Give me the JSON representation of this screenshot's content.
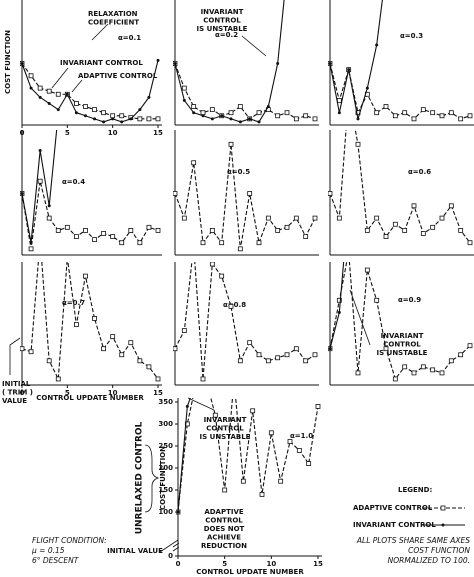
{
  "chart_data": [
    {
      "type": "line",
      "annotation": "α=0.1",
      "x": [
        0,
        1,
        2,
        3,
        4,
        5,
        6,
        7,
        8,
        9,
        10,
        11,
        12,
        13,
        14,
        15
      ],
      "xlim": [
        0,
        15
      ],
      "xticks": [
        0,
        5,
        10,
        15
      ],
      "ylim": [
        0,
        200
      ],
      "series": [
        {
          "color": "#111",
          "dashed": true,
          "values": [
            100,
            80,
            60,
            55,
            50,
            50,
            35,
            30,
            25,
            20,
            15,
            15,
            12,
            10,
            10,
            10
          ]
        },
        {
          "color": "#111",
          "dashed": false,
          "values": [
            100,
            60,
            45,
            35,
            25,
            50,
            20,
            15,
            10,
            5,
            10,
            5,
            10,
            25,
            45,
            105
          ]
        }
      ]
    },
    {
      "type": "line",
      "annotation": "α=0.2",
      "x": [
        0,
        1,
        2,
        3,
        4,
        5,
        6,
        7,
        8,
        9,
        10,
        11,
        12,
        13,
        14,
        15
      ],
      "xlim": [
        0,
        15
      ],
      "ylim": [
        0,
        200
      ],
      "series": [
        {
          "color": "#111",
          "dashed": true,
          "values": [
            100,
            60,
            30,
            20,
            25,
            15,
            20,
            30,
            10,
            20,
            25,
            15,
            20,
            10,
            15,
            10
          ]
        },
        {
          "color": "#111",
          "dashed": false,
          "values": [
            100,
            40,
            20,
            15,
            10,
            15,
            10,
            5,
            10,
            5,
            30,
            100,
            250,
            null,
            null,
            null
          ]
        }
      ]
    },
    {
      "type": "line",
      "annotation": "α=0.3",
      "x": [
        0,
        1,
        2,
        3,
        4,
        5,
        6,
        7,
        8,
        9,
        10,
        11,
        12,
        13,
        14,
        15
      ],
      "xlim": [
        0,
        15
      ],
      "ylim": [
        0,
        200
      ],
      "series": [
        {
          "color": "#111",
          "dashed": true,
          "values": [
            100,
            40,
            90,
            20,
            50,
            20,
            30,
            15,
            20,
            10,
            25,
            20,
            15,
            20,
            10,
            15
          ]
        },
        {
          "color": "#111",
          "dashed": false,
          "values": [
            100,
            20,
            90,
            10,
            60,
            130,
            250,
            null,
            null,
            null,
            null,
            null,
            null,
            null,
            null,
            null
          ]
        }
      ]
    },
    {
      "type": "line",
      "annotation": "α=0.4",
      "x": [
        0,
        1,
        2,
        3,
        4,
        5,
        6,
        7,
        8,
        9,
        10,
        11,
        12,
        13,
        14,
        15
      ],
      "xlim": [
        0,
        15
      ],
      "ylim": [
        0,
        200
      ],
      "series": [
        {
          "color": "#111",
          "dashed": true,
          "values": [
            100,
            10,
            120,
            60,
            40,
            45,
            30,
            40,
            25,
            35,
            30,
            20,
            40,
            20,
            45,
            40
          ]
        },
        {
          "color": "#111",
          "dashed": false,
          "values": [
            100,
            20,
            170,
            80,
            230,
            null,
            null,
            null,
            null,
            null,
            null,
            null,
            null,
            null,
            null,
            null
          ]
        }
      ]
    },
    {
      "type": "line",
      "annotation": "α=0.5",
      "x": [
        0,
        1,
        2,
        3,
        4,
        5,
        6,
        7,
        8,
        9,
        10,
        11,
        12,
        13,
        14,
        15
      ],
      "xlim": [
        0,
        15
      ],
      "ylim": [
        0,
        200
      ],
      "series": [
        {
          "color": "#111",
          "dashed": true,
          "values": [
            100,
            60,
            150,
            20,
            40,
            20,
            180,
            10,
            100,
            20,
            60,
            40,
            45,
            60,
            30,
            60
          ]
        }
      ]
    },
    {
      "type": "line",
      "annotation": "α=0.6",
      "x": [
        0,
        1,
        2,
        3,
        4,
        5,
        6,
        7,
        8,
        9,
        10,
        11,
        12,
        13,
        14,
        15
      ],
      "xlim": [
        0,
        15
      ],
      "ylim": [
        0,
        200
      ],
      "series": [
        {
          "color": "#111",
          "dashed": true,
          "values": [
            100,
            60,
            260,
            180,
            40,
            60,
            30,
            50,
            40,
            80,
            35,
            45,
            60,
            80,
            40,
            20
          ]
        }
      ]
    },
    {
      "type": "line",
      "annotation": "α=0.7",
      "x": [
        0,
        1,
        2,
        3,
        4,
        5,
        6,
        7,
        8,
        9,
        10,
        11,
        12,
        13,
        14,
        15
      ],
      "xlim": [
        0,
        15
      ],
      "xticks": [
        0,
        5,
        10,
        15
      ],
      "ylim": [
        0,
        200
      ],
      "series": [
        {
          "color": "#111",
          "dashed": true,
          "values": [
            60,
            55,
            240,
            40,
            10,
            210,
            100,
            180,
            110,
            60,
            80,
            50,
            70,
            40,
            30,
            10
          ]
        }
      ]
    },
    {
      "type": "line",
      "annotation": "α=0.8",
      "x": [
        0,
        1,
        2,
        3,
        4,
        5,
        6,
        7,
        8,
        9,
        10,
        11,
        12,
        13,
        14,
        15
      ],
      "xlim": [
        0,
        15
      ],
      "ylim": [
        0,
        200
      ],
      "series": [
        {
          "color": "#111",
          "dashed": true,
          "values": [
            60,
            90,
            230,
            10,
            200,
            180,
            130,
            40,
            70,
            50,
            40,
            45,
            50,
            60,
            40,
            50
          ]
        }
      ]
    },
    {
      "type": "line",
      "annotation": "α=0.9",
      "x": [
        0,
        1,
        2,
        3,
        4,
        5,
        6,
        7,
        8,
        9,
        10,
        11,
        12,
        13,
        14,
        15
      ],
      "xlim": [
        0,
        15
      ],
      "ylim": [
        0,
        200
      ],
      "series": [
        {
          "color": "#111",
          "dashed": true,
          "values": [
            60,
            140,
            220,
            20,
            190,
            140,
            60,
            10,
            30,
            20,
            30,
            25,
            20,
            40,
            50,
            65
          ]
        },
        {
          "color": "#111",
          "dashed": false,
          "values": [
            60,
            120,
            300,
            null,
            null,
            null,
            null,
            null,
            null,
            null,
            null,
            null,
            null,
            null,
            null,
            null
          ]
        }
      ]
    },
    {
      "type": "line",
      "annotation": "α=1.0",
      "x": [
        0,
        1,
        2,
        3,
        4,
        5,
        6,
        7,
        8,
        9,
        10,
        11,
        12,
        13,
        14,
        15
      ],
      "xlim": [
        0,
        15
      ],
      "xticks": [
        0,
        5,
        10,
        15
      ],
      "ylim": [
        0,
        350
      ],
      "yticks": [
        0,
        100,
        150,
        200,
        250,
        300,
        350
      ],
      "series": [
        {
          "color": "#111",
          "dashed": true,
          "values": [
            100,
            300,
            400,
            400,
            320,
            150,
            400,
            170,
            330,
            140,
            280,
            170,
            260,
            240,
            210,
            340
          ]
        },
        {
          "color": "#111",
          "dashed": false,
          "values": [
            100,
            340,
            400,
            null,
            null,
            null,
            null,
            null,
            null,
            null,
            null,
            null,
            null,
            null,
            null,
            null
          ]
        }
      ]
    }
  ],
  "labels": {
    "y_axis": "COST FUNCTION",
    "x_axis": "CONTROL UPDATE NUMBER",
    "unrelaxed": "UNRELAXED CONTROL"
  },
  "annotations": [
    {
      "lines": [
        "RELAXATION",
        "COEFFICIENT"
      ]
    },
    {
      "lines": [
        "INVARIANT CONTROL"
      ]
    },
    {
      "lines": [
        "ADAPTIVE CONTROL"
      ]
    },
    {
      "lines": [
        "INVARIANT",
        "CONTROL",
        "IS UNSTABLE"
      ]
    },
    {
      "lines": [
        "INVARIANT",
        "CONTROL",
        "IS UNSTABLE"
      ]
    },
    {
      "lines": [
        "INITIAL",
        "( TRIM )",
        "VALUE"
      ]
    },
    {
      "lines": [
        "INVARIANT",
        "CONTROL",
        "IS UNSTABLE"
      ]
    },
    {
      "lines": [
        "ADAPTIVE",
        "CONTROL",
        "DOES NOT",
        "ACHIEVE",
        "REDUCTION"
      ]
    },
    {
      "lines": [
        "INITIAL VALUE"
      ]
    }
  ],
  "legend": {
    "title": "LEGEND:",
    "entries": [
      "ADAPTIVE CONTROL",
      "INVARIANT CONTROL"
    ]
  },
  "notes": {
    "left": [
      "FLIGHT CONDITION:",
      "μ = 0.15",
      "6° DESCENT"
    ],
    "right": [
      "ALL PLOTS SHARE SAME AXES",
      "COST FUNCTION",
      "NORMALIZED TO 100."
    ]
  }
}
